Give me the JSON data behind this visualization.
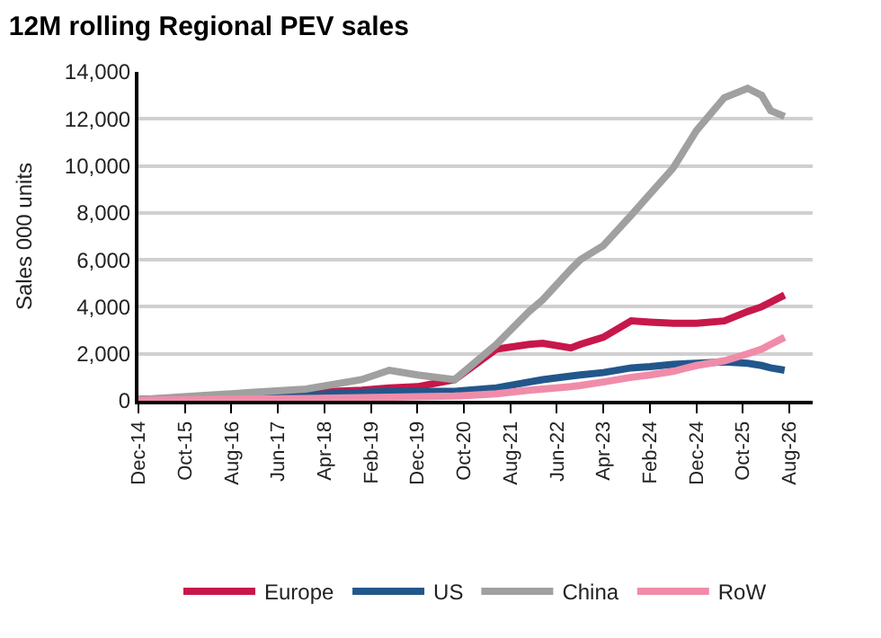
{
  "chart_data": {
    "type": "line",
    "title": "12M rolling Regional PEV sales",
    "ylabel": "Sales 000 units",
    "x": [
      "2014-12",
      "2015-12",
      "2016-12",
      "2017-12",
      "2018-12",
      "2019-06",
      "2019-12",
      "2020-08",
      "2021-05",
      "2021-12",
      "2022-03",
      "2022-09",
      "2022-11",
      "2023-04",
      "2023-10",
      "2024-02",
      "2024-07",
      "2024-12",
      "2025-06",
      "2025-11",
      "2026-02",
      "2026-04",
      "2026-07"
    ],
    "series": [
      {
        "name": "Europe",
        "color": "#c8174a",
        "x": [
          "2014-12",
          "2017-12",
          "2018-12",
          "2019-06",
          "2019-12",
          "2020-08",
          "2021-05",
          "2021-12",
          "2022-03",
          "2022-09",
          "2022-11",
          "2023-04",
          "2023-10",
          "2024-02",
          "2024-07",
          "2024-12",
          "2025-06",
          "2025-11",
          "2026-02",
          "2026-04",
          "2026-07"
        ],
        "values": [
          50,
          350,
          450,
          550,
          600,
          900,
          2200,
          2400,
          2450,
          2250,
          2400,
          2700,
          3400,
          3350,
          3300,
          3300,
          3400,
          3800,
          4000,
          4200,
          4500
        ]
      },
      {
        "name": "US",
        "color": "#22578c",
        "x": [
          "2014-12",
          "2017-12",
          "2018-12",
          "2019-06",
          "2019-12",
          "2020-08",
          "2021-05",
          "2021-12",
          "2022-03",
          "2022-09",
          "2022-11",
          "2023-04",
          "2023-10",
          "2024-02",
          "2024-07",
          "2024-12",
          "2025-06",
          "2025-11",
          "2026-02",
          "2026-04",
          "2026-07"
        ],
        "values": [
          50,
          250,
          350,
          400,
          400,
          400,
          550,
          800,
          900,
          1050,
          1100,
          1200,
          1400,
          1450,
          1550,
          1600,
          1650,
          1600,
          1500,
          1400,
          1300
        ]
      },
      {
        "name": "China",
        "color": "#a0a0a0",
        "values": [
          50,
          200,
          350,
          500,
          900,
          1300,
          1100,
          900,
          2400,
          3800,
          4300,
          5600,
          6000,
          6600,
          7900,
          8800,
          9900,
          11500,
          12900,
          13300,
          13000,
          12350,
          12100
        ]
      },
      {
        "name": "RoW",
        "color": "#f08caa",
        "values": [
          20,
          50,
          80,
          100,
          130,
          150,
          170,
          200,
          300,
          450,
          500,
          600,
          650,
          800,
          1000,
          1100,
          1250,
          1500,
          1700,
          2000,
          2200,
          2400,
          2700
        ]
      }
    ],
    "xlim": [
      "2014-12-01",
      "2027-01-01"
    ],
    "xticks": [
      {
        "value": "2014-12-01",
        "label": "Dec-14"
      },
      {
        "value": "2015-10-01",
        "label": "Oct-15"
      },
      {
        "value": "2016-08-01",
        "label": "Aug-16"
      },
      {
        "value": "2017-06-01",
        "label": "Jun-17"
      },
      {
        "value": "2018-04-01",
        "label": "Apr-18"
      },
      {
        "value": "2019-02-01",
        "label": "Feb-19"
      },
      {
        "value": "2019-12-01",
        "label": "Dec-19"
      },
      {
        "value": "2020-10-01",
        "label": "Oct-20"
      },
      {
        "value": "2021-08-01",
        "label": "Aug-21"
      },
      {
        "value": "2022-06-01",
        "label": "Jun-22"
      },
      {
        "value": "2023-04-01",
        "label": "Apr-23"
      },
      {
        "value": "2024-02-01",
        "label": "Feb-24"
      },
      {
        "value": "2024-12-01",
        "label": "Dec-24"
      },
      {
        "value": "2025-10-01",
        "label": "Oct-25"
      },
      {
        "value": "2026-08-01",
        "label": "Aug-26"
      }
    ],
    "ylim": [
      0,
      14000
    ],
    "yticks": [
      0,
      {
        "value": 2000,
        "label": "2,000"
      },
      {
        "value": 4000,
        "label": "4,000"
      },
      {
        "value": 6000,
        "label": "6,000"
      },
      {
        "value": 8000,
        "label": "8,000"
      },
      {
        "value": 10000,
        "label": "10,000"
      },
      {
        "value": 12000,
        "label": "12,000"
      },
      {
        "value": 14000,
        "label": "14,000"
      }
    ],
    "grid": "y",
    "legend": "bottom",
    "marker": "none",
    "line_style": "solid"
  }
}
